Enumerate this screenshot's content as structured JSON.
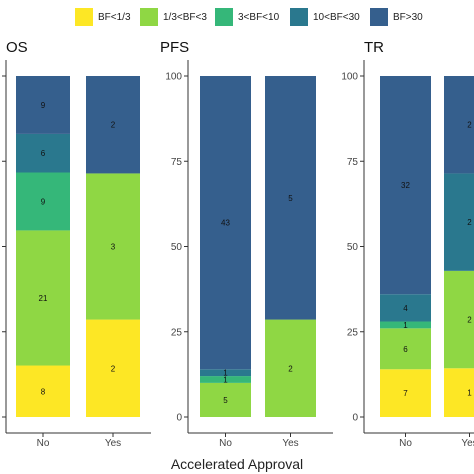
{
  "legend": {
    "items": [
      {
        "label": "BF<1/3",
        "color": "#fde725"
      },
      {
        "label": "1/3<BF<3",
        "color": "#8fd744"
      },
      {
        "label": "3<BF<10",
        "color": "#35b779"
      },
      {
        "label": "10<BF<30",
        "color": "#2a788e"
      },
      {
        "label": "BF>30",
        "color": "#355f8d"
      }
    ]
  },
  "xlabel": "Accelerated Approval",
  "chart_data": [
    {
      "type": "bar",
      "title": "OS",
      "stacked": "percent",
      "categories": [
        "No",
        "Yes"
      ],
      "ylim": [
        0,
        100
      ],
      "yticks": [],
      "series": [
        {
          "name": "BF<1/3",
          "values": [
            8,
            2
          ]
        },
        {
          "name": "1/3<BF<3",
          "values": [
            21,
            3
          ]
        },
        {
          "name": "3<BF<10",
          "values": [
            9,
            0
          ]
        },
        {
          "name": "10<BF<30",
          "values": [
            6,
            0
          ]
        },
        {
          "name": "BF>30",
          "values": [
            9,
            2
          ]
        }
      ]
    },
    {
      "type": "bar",
      "title": "PFS",
      "stacked": "percent",
      "categories": [
        "No",
        "Yes"
      ],
      "ylim": [
        0,
        100
      ],
      "yticks": [
        "0",
        "25",
        "50",
        "75",
        "100"
      ],
      "series": [
        {
          "name": "BF<1/3",
          "values": [
            0,
            0
          ]
        },
        {
          "name": "1/3<BF<3",
          "values": [
            5,
            2
          ]
        },
        {
          "name": "3<BF<10",
          "values": [
            1,
            0
          ]
        },
        {
          "name": "10<BF<30",
          "values": [
            1,
            0
          ]
        },
        {
          "name": "BF>30",
          "values": [
            43,
            5
          ]
        }
      ]
    },
    {
      "type": "bar",
      "title": "TR",
      "stacked": "percent",
      "categories": [
        "No",
        "Yes"
      ],
      "ylim": [
        0,
        100
      ],
      "yticks": [
        "0",
        "25",
        "50",
        "75",
        "100"
      ],
      "series": [
        {
          "name": "BF<1/3",
          "values": [
            7,
            1
          ]
        },
        {
          "name": "1/3<BF<3",
          "values": [
            6,
            2
          ]
        },
        {
          "name": "3<BF<10",
          "values": [
            1,
            0
          ]
        },
        {
          "name": "10<BF<30",
          "values": [
            4,
            2
          ]
        },
        {
          "name": "BF>30",
          "values": [
            32,
            2
          ]
        }
      ]
    }
  ]
}
